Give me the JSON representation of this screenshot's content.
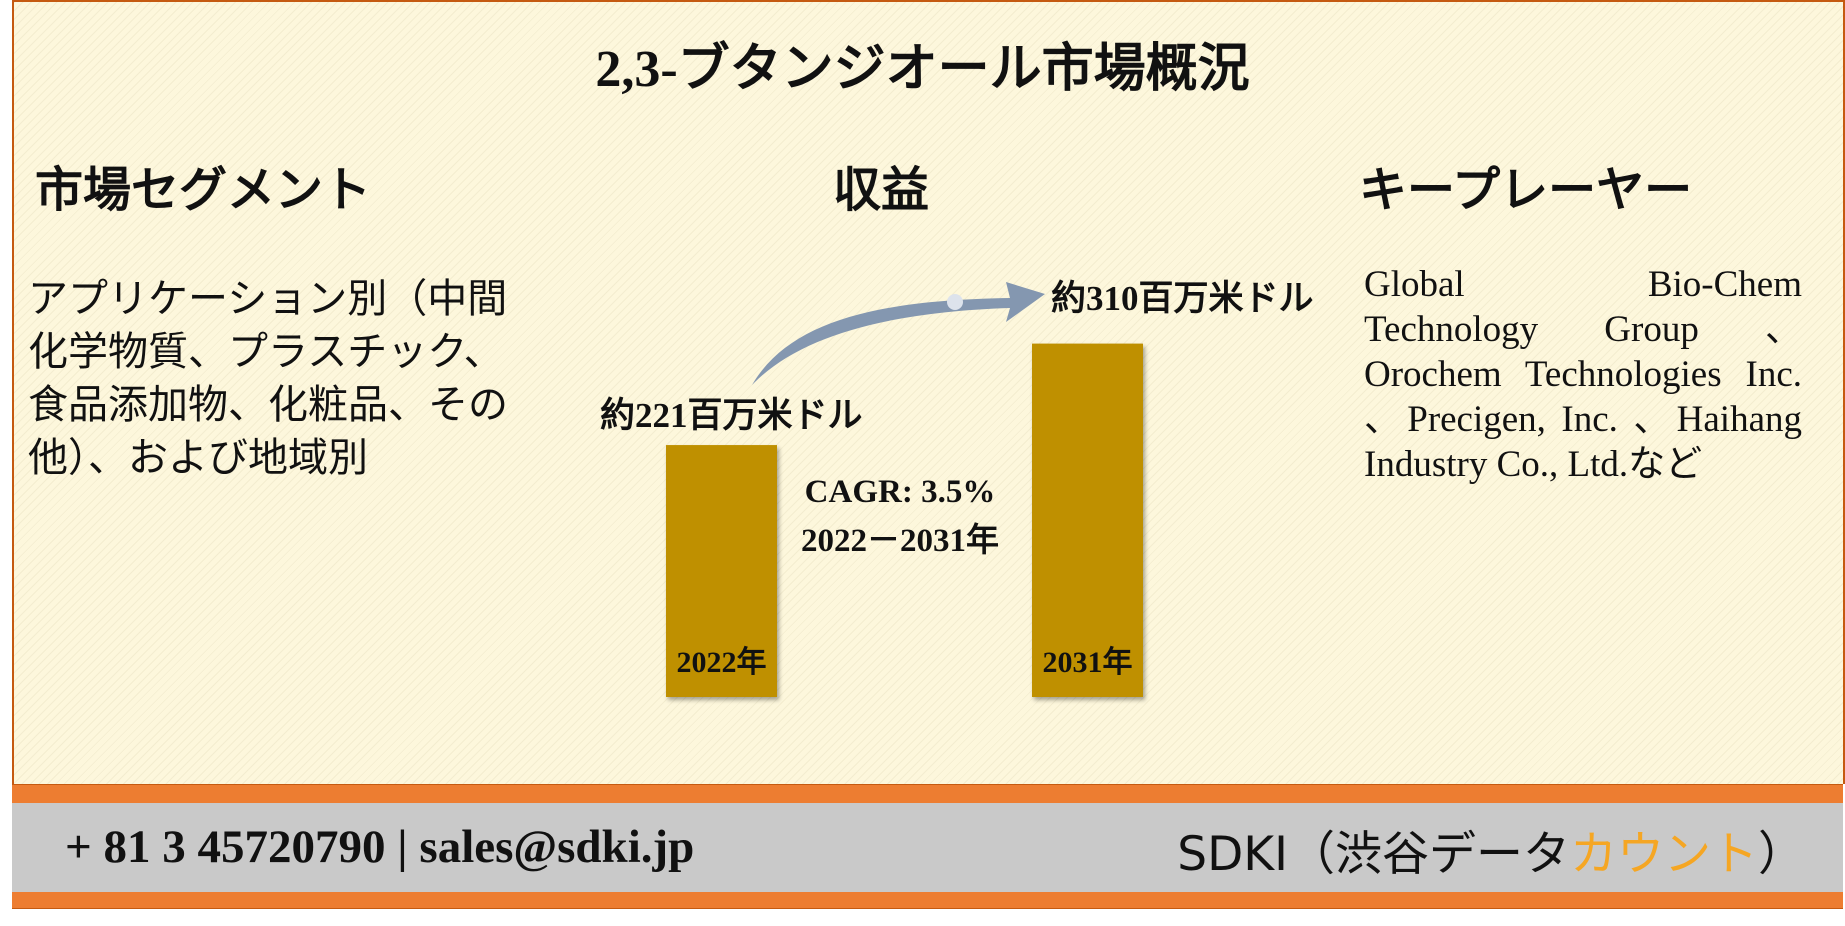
{
  "title": "2,3-ブタンジオール市場概況",
  "segments": {
    "heading": "市場セグメント",
    "text": "アプリケーション別（中間化学物質、プラスチック、食品添加物、化粧品、その他）、および地域別"
  },
  "revenue": {
    "heading": "収益",
    "bars": [
      {
        "label": "約221百万米ドル",
        "value": 221,
        "year": "2022年"
      },
      {
        "label": "約310百万米ドル",
        "value": 310,
        "year": "2031年"
      }
    ],
    "cagr": "CAGR: 3.5%",
    "period": "2022－2031年"
  },
  "players": {
    "heading": "キープレーヤー",
    "text": "Global Bio-Chem Technology Group 、Orochem Technologies Inc. 、Precigen, Inc. 、Haihang Industry Co., Ltd.など"
  },
  "footer": {
    "phone": "+ 81 3 45720790",
    "separator": "|",
    "email": "sales@sdki.jp",
    "brand": "SDKI（渋谷データ",
    "brand_highlight": "カウント",
    "brand_end": "）"
  }
}
